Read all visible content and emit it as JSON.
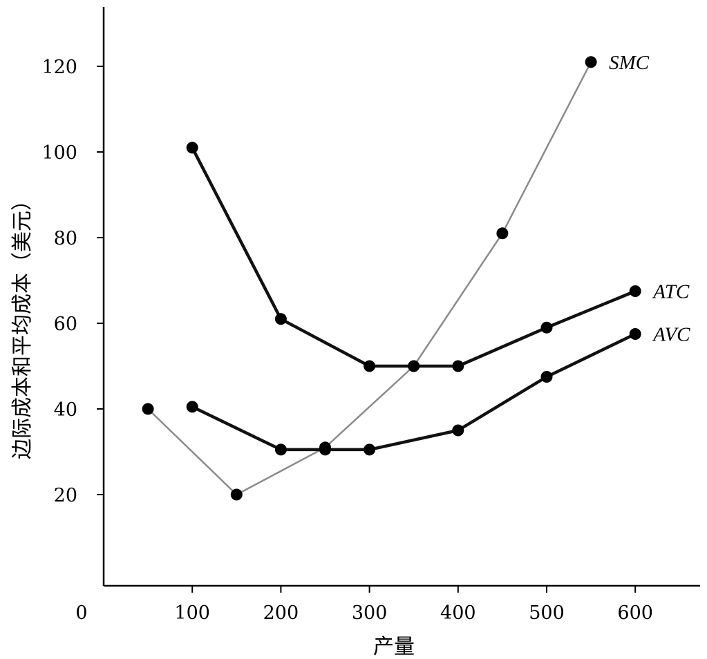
{
  "chart_data": {
    "type": "line",
    "title": "",
    "xlabel": "产量",
    "ylabel": "边际成本和平均成本（美元）",
    "origin_label": "0",
    "xlim": [
      0,
      680
    ],
    "ylim": [
      0,
      135
    ],
    "x_ticks": [
      100,
      200,
      300,
      400,
      500,
      600
    ],
    "y_ticks": [
      20,
      40,
      60,
      80,
      100,
      120
    ],
    "grid": false,
    "series": [
      {
        "name": "SMC",
        "style": "thin-gray",
        "color": "#8a8a8a",
        "points": [
          [
            50,
            40
          ],
          [
            150,
            20
          ],
          [
            250,
            31
          ],
          [
            350,
            50
          ],
          [
            450,
            81
          ],
          [
            550,
            121
          ]
        ]
      },
      {
        "name": "ATC",
        "style": "thick-black",
        "color": "#111111",
        "points": [
          [
            100,
            101
          ],
          [
            200,
            61
          ],
          [
            300,
            50
          ],
          [
            350,
            50
          ],
          [
            400,
            50
          ],
          [
            500,
            59
          ],
          [
            600,
            67.5
          ]
        ]
      },
      {
        "name": "AVC",
        "style": "thick-black",
        "color": "#111111",
        "points": [
          [
            100,
            40.5
          ],
          [
            200,
            30.5
          ],
          [
            250,
            30.5
          ],
          [
            300,
            30.5
          ],
          [
            400,
            35
          ],
          [
            500,
            47.5
          ],
          [
            600,
            57.5
          ]
        ]
      }
    ]
  }
}
